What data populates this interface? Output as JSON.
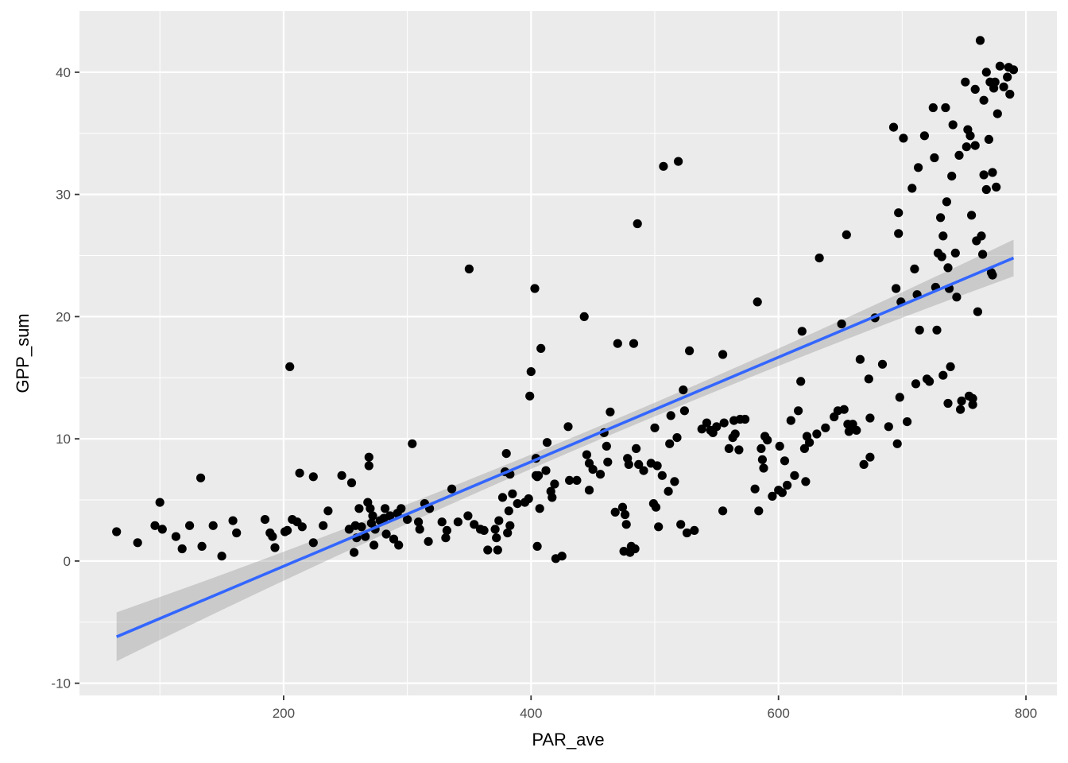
{
  "chart_data": {
    "type": "scatter",
    "title": "",
    "xlabel": "PAR_ave",
    "ylabel": "GPP_sum",
    "xlim": [
      35,
      825
    ],
    "ylim": [
      -11,
      45
    ],
    "x_ticks": [
      200,
      400,
      600,
      800
    ],
    "x_tick_labels": [
      "200",
      "400",
      "600",
      "800"
    ],
    "y_ticks": [
      -10,
      0,
      10,
      20,
      30,
      40
    ],
    "y_tick_labels": [
      "-10",
      "0",
      "10",
      "20",
      "30",
      "40"
    ],
    "grid": true,
    "colors": {
      "panel": "#ebebeb",
      "grid_major": "#ffffff",
      "points": "#000000",
      "fit_line": "#3366ff",
      "ribbon": "#999999"
    },
    "fit": {
      "method": "linear",
      "x": [
        65,
        790
      ],
      "y": [
        -6.2,
        24.8
      ],
      "ci_lower": [
        -8.2,
        23.3
      ],
      "ci_upper": [
        -4.2,
        26.3
      ]
    },
    "points": [
      [
        65,
        2.4
      ],
      [
        82,
        1.5
      ],
      [
        96,
        2.9
      ],
      [
        100,
        4.8
      ],
      [
        102,
        2.6
      ],
      [
        113,
        2.0
      ],
      [
        118,
        1.0
      ],
      [
        124,
        2.9
      ],
      [
        133,
        6.8
      ],
      [
        134,
        1.2
      ],
      [
        143,
        2.9
      ],
      [
        150,
        0.4
      ],
      [
        159,
        3.3
      ],
      [
        162,
        2.3
      ],
      [
        185,
        3.4
      ],
      [
        189,
        2.3
      ],
      [
        191,
        2.0
      ],
      [
        193,
        1.1
      ],
      [
        201,
        2.4
      ],
      [
        203,
        2.5
      ],
      [
        205,
        15.9
      ],
      [
        207,
        3.4
      ],
      [
        211,
        3.2
      ],
      [
        213,
        7.2
      ],
      [
        215,
        2.8
      ],
      [
        224,
        6.9
      ],
      [
        224,
        1.5
      ],
      [
        232,
        2.9
      ],
      [
        236,
        4.1
      ],
      [
        247,
        7.0
      ],
      [
        253,
        2.6
      ],
      [
        255,
        6.4
      ],
      [
        257,
        0.7
      ],
      [
        258,
        2.9
      ],
      [
        259,
        1.9
      ],
      [
        261,
        4.3
      ],
      [
        263,
        2.8
      ],
      [
        266,
        2.0
      ],
      [
        268,
        4.8
      ],
      [
        269,
        8.5
      ],
      [
        269,
        7.8
      ],
      [
        270,
        4.3
      ],
      [
        271,
        3.1
      ],
      [
        272,
        3.7
      ],
      [
        273,
        1.3
      ],
      [
        274,
        2.6
      ],
      [
        278,
        3.3
      ],
      [
        281,
        3.5
      ],
      [
        282,
        4.3
      ],
      [
        283,
        2.2
      ],
      [
        286,
        3.7
      ],
      [
        289,
        1.8
      ],
      [
        292,
        3.9
      ],
      [
        293,
        1.3
      ],
      [
        295,
        4.3
      ],
      [
        300,
        3.4
      ],
      [
        304,
        9.6
      ],
      [
        309,
        3.2
      ],
      [
        310,
        2.6
      ],
      [
        314,
        4.7
      ],
      [
        317,
        1.6
      ],
      [
        318,
        4.3
      ],
      [
        328,
        3.2
      ],
      [
        331,
        1.9
      ],
      [
        332,
        2.5
      ],
      [
        336,
        5.9
      ],
      [
        341,
        3.2
      ],
      [
        349,
        3.7
      ],
      [
        350,
        23.9
      ],
      [
        354,
        3.0
      ],
      [
        359,
        2.6
      ],
      [
        362,
        2.5
      ],
      [
        365,
        0.9
      ],
      [
        371,
        2.6
      ],
      [
        372,
        1.9
      ],
      [
        373,
        0.9
      ],
      [
        374,
        3.3
      ],
      [
        377,
        5.2
      ],
      [
        379,
        7.3
      ],
      [
        380,
        8.8
      ],
      [
        381,
        2.3
      ],
      [
        382,
        4.1
      ],
      [
        383,
        2.9
      ],
      [
        383,
        7.1
      ],
      [
        385,
        5.5
      ],
      [
        389,
        4.7
      ],
      [
        395,
        4.8
      ],
      [
        398,
        5.1
      ],
      [
        399,
        13.5
      ],
      [
        400,
        15.5
      ],
      [
        403,
        22.3
      ],
      [
        404,
        8.4
      ],
      [
        404,
        7.0
      ],
      [
        405,
        1.2
      ],
      [
        405,
        6.9
      ],
      [
        406,
        7.0
      ],
      [
        407,
        4.3
      ],
      [
        408,
        17.4
      ],
      [
        412,
        7.4
      ],
      [
        413,
        9.7
      ],
      [
        416,
        5.7
      ],
      [
        417,
        5.2
      ],
      [
        419,
        6.3
      ],
      [
        420,
        0.2
      ],
      [
        425,
        0.4
      ],
      [
        430,
        11.0
      ],
      [
        431,
        6.6
      ],
      [
        437,
        6.6
      ],
      [
        443,
        20.0
      ],
      [
        445,
        8.7
      ],
      [
        447,
        8.0
      ],
      [
        447,
        5.8
      ],
      [
        450,
        7.5
      ],
      [
        456,
        7.1
      ],
      [
        459,
        10.5
      ],
      [
        461,
        9.4
      ],
      [
        462,
        8.1
      ],
      [
        464,
        12.2
      ],
      [
        468,
        4.0
      ],
      [
        470,
        17.8
      ],
      [
        474,
        4.4
      ],
      [
        475,
        0.8
      ],
      [
        476,
        3.8
      ],
      [
        477,
        3.0
      ],
      [
        478,
        8.4
      ],
      [
        479,
        7.9
      ],
      [
        480,
        0.7
      ],
      [
        481,
        1.2
      ],
      [
        483,
        17.8
      ],
      [
        484,
        1.0
      ],
      [
        485,
        9.2
      ],
      [
        486,
        27.6
      ],
      [
        487,
        7.9
      ],
      [
        491,
        7.4
      ],
      [
        497,
        8.0
      ],
      [
        499,
        4.7
      ],
      [
        500,
        10.9
      ],
      [
        501,
        4.4
      ],
      [
        502,
        7.8
      ],
      [
        503,
        2.8
      ],
      [
        506,
        7.0
      ],
      [
        507,
        32.3
      ],
      [
        511,
        5.7
      ],
      [
        512,
        9.6
      ],
      [
        513,
        11.9
      ],
      [
        516,
        6.5
      ],
      [
        518,
        10.1
      ],
      [
        519,
        32.7
      ],
      [
        521,
        3.0
      ],
      [
        523,
        14.0
      ],
      [
        524,
        12.3
      ],
      [
        526,
        2.3
      ],
      [
        528,
        17.2
      ],
      [
        532,
        2.5
      ],
      [
        538,
        10.8
      ],
      [
        542,
        11.3
      ],
      [
        545,
        10.7
      ],
      [
        547,
        10.5
      ],
      [
        550,
        11.0
      ],
      [
        555,
        16.9
      ],
      [
        555,
        4.1
      ],
      [
        556,
        11.3
      ],
      [
        560,
        9.2
      ],
      [
        563,
        10.1
      ],
      [
        564,
        11.5
      ],
      [
        565,
        10.4
      ],
      [
        568,
        9.1
      ],
      [
        569,
        11.6
      ],
      [
        573,
        11.6
      ],
      [
        581,
        5.9
      ],
      [
        583,
        21.2
      ],
      [
        584,
        4.1
      ],
      [
        586,
        9.2
      ],
      [
        587,
        8.3
      ],
      [
        588,
        7.6
      ],
      [
        589,
        10.2
      ],
      [
        591,
        9.9
      ],
      [
        595,
        5.3
      ],
      [
        600,
        5.8
      ],
      [
        601,
        9.4
      ],
      [
        603,
        5.6
      ],
      [
        605,
        8.2
      ],
      [
        607,
        6.2
      ],
      [
        610,
        11.5
      ],
      [
        613,
        7.0
      ],
      [
        616,
        12.3
      ],
      [
        618,
        14.7
      ],
      [
        619,
        18.8
      ],
      [
        621,
        9.2
      ],
      [
        622,
        6.5
      ],
      [
        623,
        10.2
      ],
      [
        625,
        9.7
      ],
      [
        631,
        10.4
      ],
      [
        633,
        24.8
      ],
      [
        638,
        10.9
      ],
      [
        645,
        11.8
      ],
      [
        648,
        12.3
      ],
      [
        651,
        19.4
      ],
      [
        653,
        12.4
      ],
      [
        655,
        26.7
      ],
      [
        656,
        11.2
      ],
      [
        657,
        10.6
      ],
      [
        660,
        11.2
      ],
      [
        663,
        10.7
      ],
      [
        666,
        16.5
      ],
      [
        669,
        7.9
      ],
      [
        673,
        14.9
      ],
      [
        674,
        11.7
      ],
      [
        674,
        8.5
      ],
      [
        678,
        19.9
      ],
      [
        684,
        16.1
      ],
      [
        689,
        11.0
      ],
      [
        693,
        35.5
      ],
      [
        695,
        22.3
      ],
      [
        696,
        9.6
      ],
      [
        697,
        28.5
      ],
      [
        697,
        26.8
      ],
      [
        698,
        13.4
      ],
      [
        699,
        21.2
      ],
      [
        701,
        34.6
      ],
      [
        704,
        11.4
      ],
      [
        708,
        30.5
      ],
      [
        710,
        23.9
      ],
      [
        711,
        14.5
      ],
      [
        712,
        21.8
      ],
      [
        713,
        32.2
      ],
      [
        714,
        18.9
      ],
      [
        718,
        34.8
      ],
      [
        720,
        14.9
      ],
      [
        722,
        14.7
      ],
      [
        725,
        37.1
      ],
      [
        726,
        33.0
      ],
      [
        727,
        22.4
      ],
      [
        728,
        18.9
      ],
      [
        729,
        25.2
      ],
      [
        731,
        28.1
      ],
      [
        732,
        24.9
      ],
      [
        733,
        15.2
      ],
      [
        733,
        26.6
      ],
      [
        735,
        37.1
      ],
      [
        736,
        29.4
      ],
      [
        737,
        24.0
      ],
      [
        737,
        12.9
      ],
      [
        738,
        22.3
      ],
      [
        739,
        15.9
      ],
      [
        740,
        31.5
      ],
      [
        741,
        35.7
      ],
      [
        743,
        25.2
      ],
      [
        744,
        21.6
      ],
      [
        746,
        33.2
      ],
      [
        747,
        12.4
      ],
      [
        748,
        13.1
      ],
      [
        751,
        39.2
      ],
      [
        752,
        33.9
      ],
      [
        753,
        35.3
      ],
      [
        754,
        13.5
      ],
      [
        755,
        34.8
      ],
      [
        756,
        28.3
      ],
      [
        757,
        12.8
      ],
      [
        757,
        13.3
      ],
      [
        759,
        34.0
      ],
      [
        759,
        38.6
      ],
      [
        760,
        26.2
      ],
      [
        761,
        20.4
      ],
      [
        763,
        42.6
      ],
      [
        764,
        26.6
      ],
      [
        765,
        25.1
      ],
      [
        766,
        37.7
      ],
      [
        766,
        31.6
      ],
      [
        768,
        40.0
      ],
      [
        768,
        30.4
      ],
      [
        770,
        34.5
      ],
      [
        771,
        39.2
      ],
      [
        772,
        23.6
      ],
      [
        773,
        31.8
      ],
      [
        773,
        23.4
      ],
      [
        774,
        38.7
      ],
      [
        775,
        39.2
      ],
      [
        776,
        30.6
      ],
      [
        777,
        36.6
      ],
      [
        779,
        40.5
      ],
      [
        782,
        38.8
      ],
      [
        785,
        39.6
      ],
      [
        786,
        40.4
      ],
      [
        787,
        38.2
      ],
      [
        790,
        40.2
      ]
    ]
  }
}
